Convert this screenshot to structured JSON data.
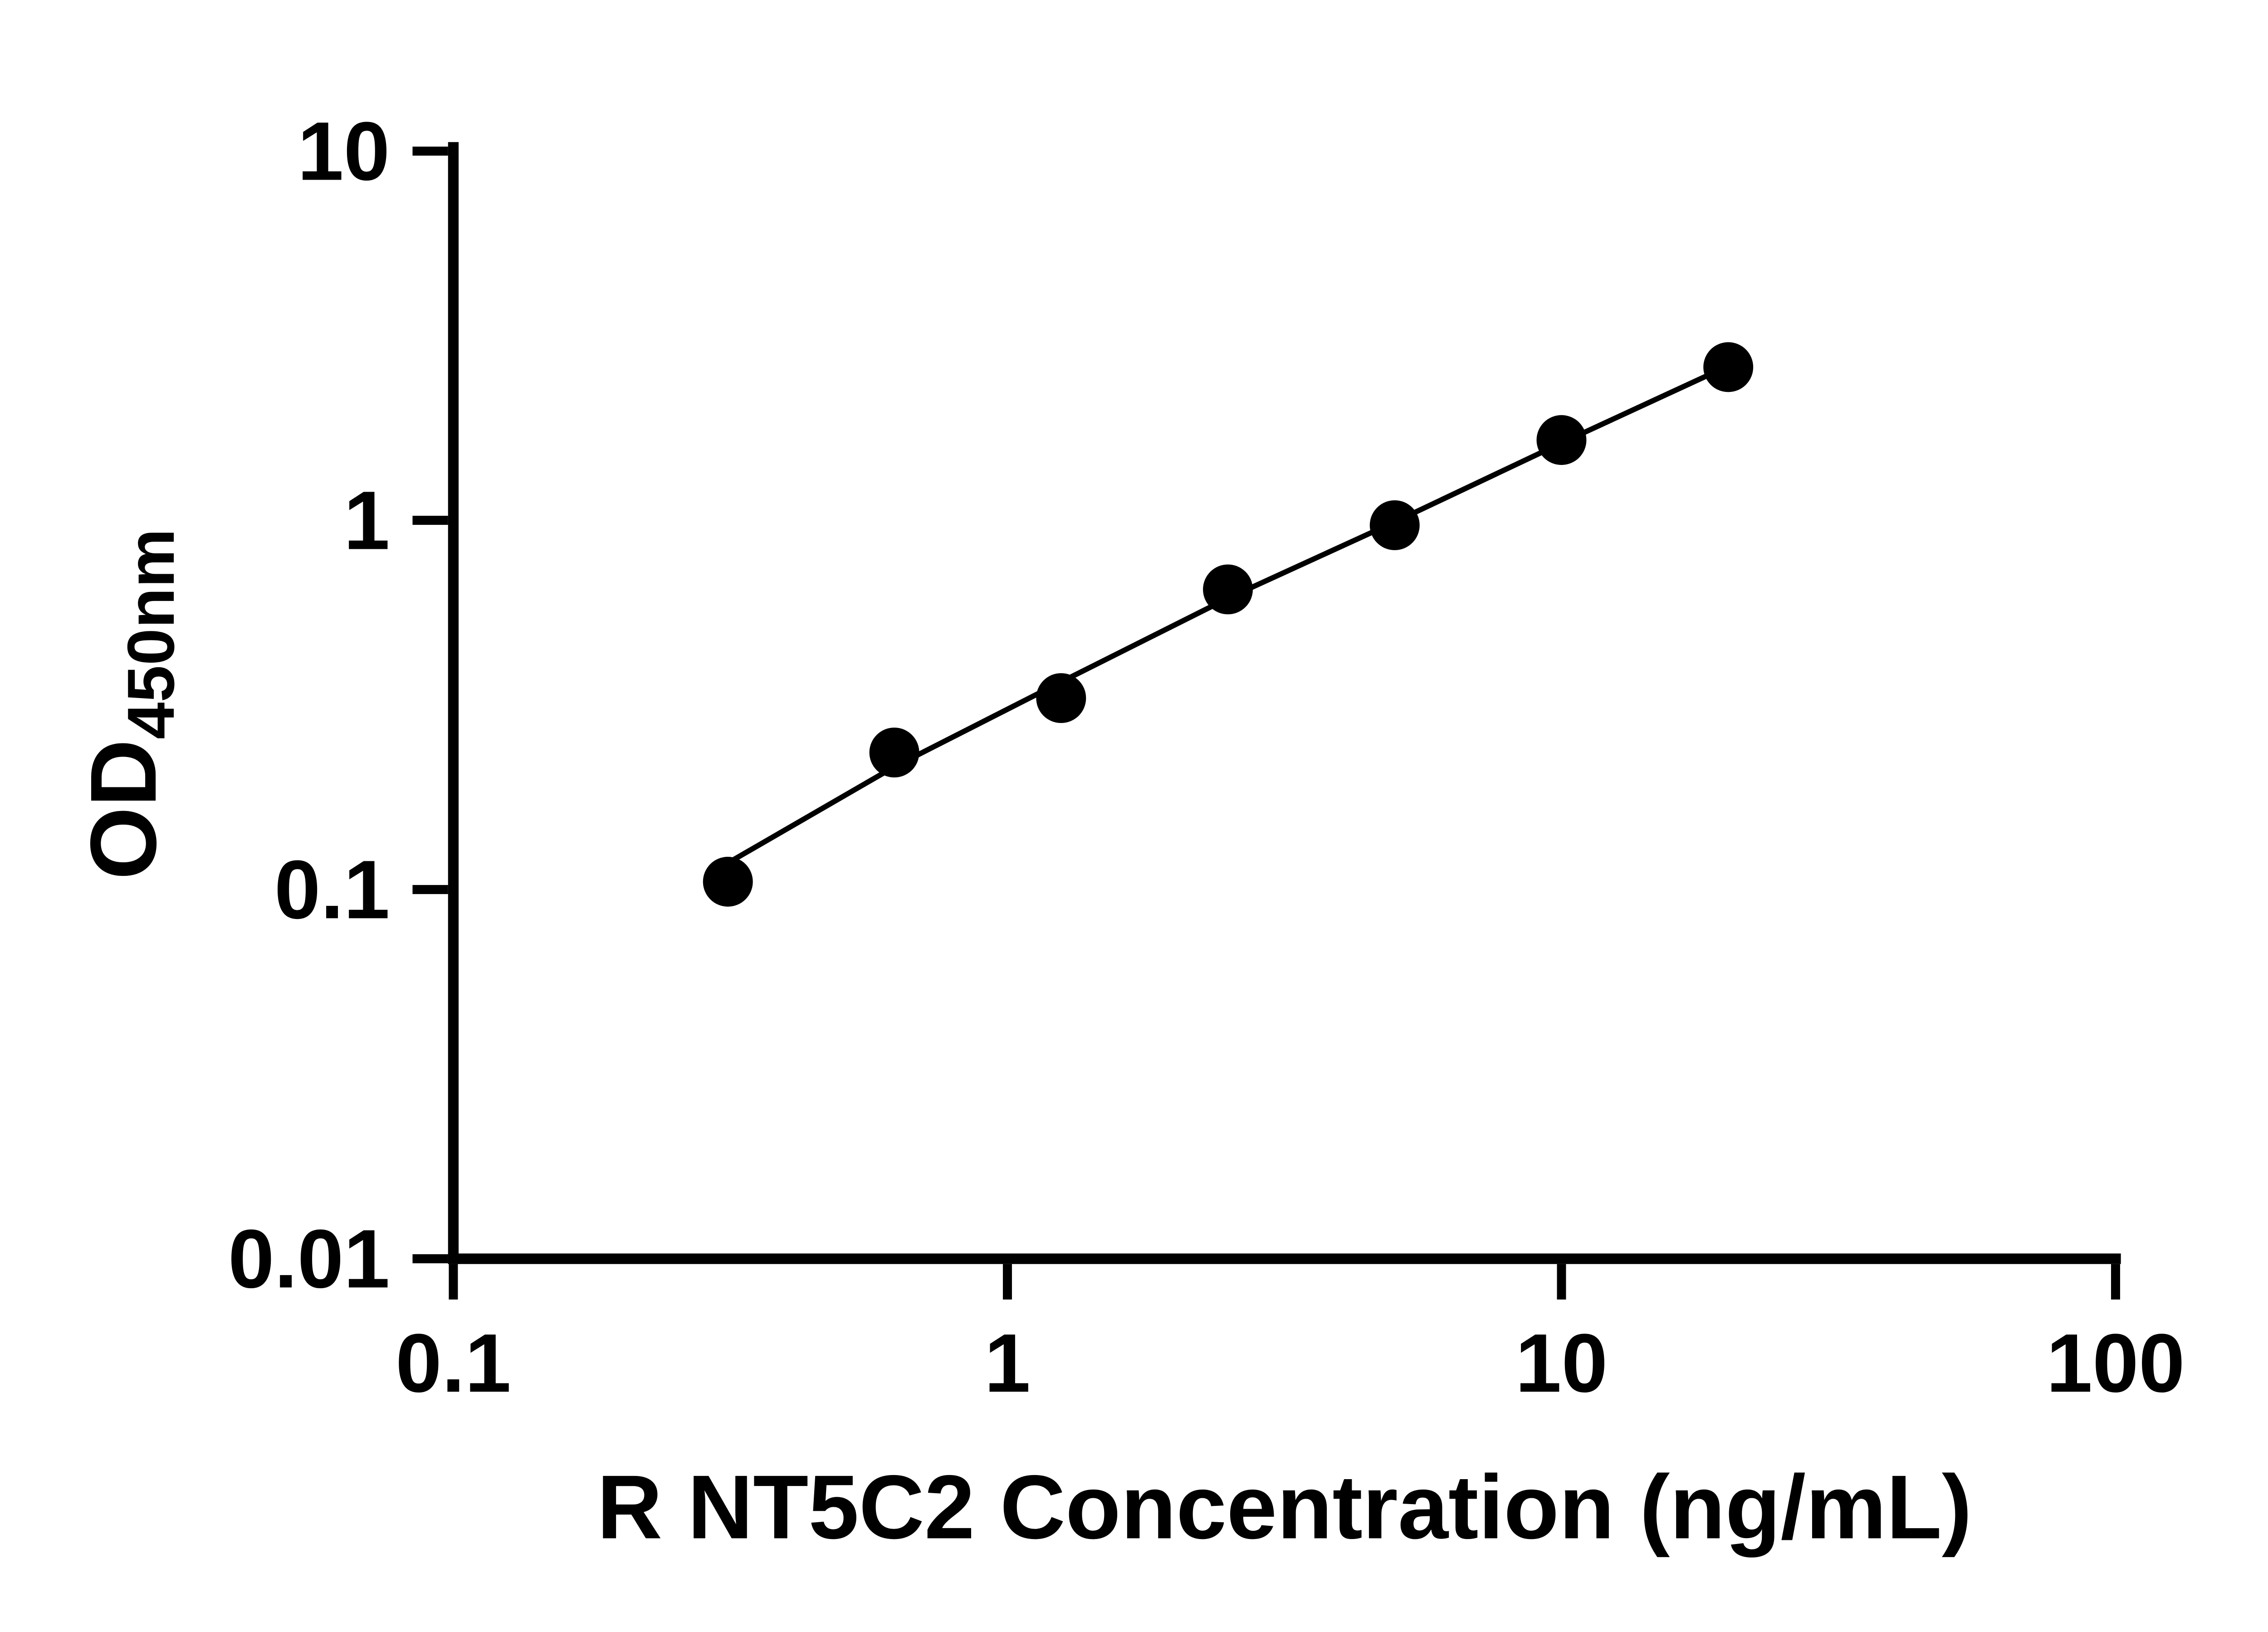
{
  "page": {
    "background": "#ffffff"
  },
  "chart_data": {
    "type": "scatter",
    "title": "",
    "xlabel": "R NT5C2 Concentration (ng/mL)",
    "ylabel": "OD",
    "ylabel_sub": "450nm",
    "x_scale": "log",
    "y_scale": "log",
    "xlim": [
      0.1,
      100
    ],
    "ylim": [
      0.01,
      10
    ],
    "x_ticks": [
      0.1,
      1,
      10,
      100
    ],
    "x_tick_labels": [
      "0.1",
      "1",
      "10",
      "100"
    ],
    "y_ticks": [
      0.01,
      0.1,
      1,
      10
    ],
    "y_tick_labels": [
      "0.01",
      "0.1",
      "1",
      "10"
    ],
    "grid": false,
    "legend": "none",
    "axis_color": "#000000",
    "marker_color": "#000000",
    "line_color": "#000000",
    "points": [
      {
        "x": 0.313,
        "y": 0.105
      },
      {
        "x": 0.625,
        "y": 0.235
      },
      {
        "x": 1.25,
        "y": 0.33
      },
      {
        "x": 2.5,
        "y": 0.65
      },
      {
        "x": 5,
        "y": 0.97
      },
      {
        "x": 10,
        "y": 1.65
      },
      {
        "x": 20,
        "y": 2.6
      }
    ],
    "trend_line": [
      {
        "x": 0.313,
        "y": 0.118
      },
      {
        "x": 0.625,
        "y": 0.215
      },
      {
        "x": 1.25,
        "y": 0.365
      },
      {
        "x": 2.5,
        "y": 0.615
      },
      {
        "x": 5,
        "y": 0.99
      },
      {
        "x": 10,
        "y": 1.62
      },
      {
        "x": 20,
        "y": 2.62
      }
    ]
  }
}
